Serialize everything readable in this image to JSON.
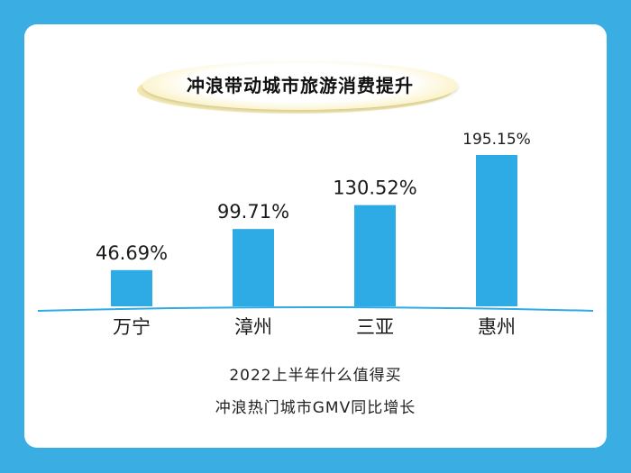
{
  "title": "冲浪带动城市旅游消费提升",
  "caption": {
    "line1": "2022上半年什么值得买",
    "line2": "冲浪热门城市GMV同比增长"
  },
  "colors": {
    "background": "#3aaee3",
    "bar": "#2eaae5",
    "baseline": "#2eaae5"
  },
  "chart_data": {
    "type": "bar",
    "title": "冲浪带动城市旅游消费提升",
    "categories": [
      "万宁",
      "漳州",
      "三亚",
      "惠州"
    ],
    "values": [
      46.69,
      99.71,
      130.52,
      195.15
    ],
    "data_labels": [
      "46.69%",
      "99.71%",
      "130.52%",
      "195.15%"
    ],
    "unit": "%",
    "ylim": [
      0,
      195.15
    ],
    "grid": false,
    "legend": "none"
  }
}
